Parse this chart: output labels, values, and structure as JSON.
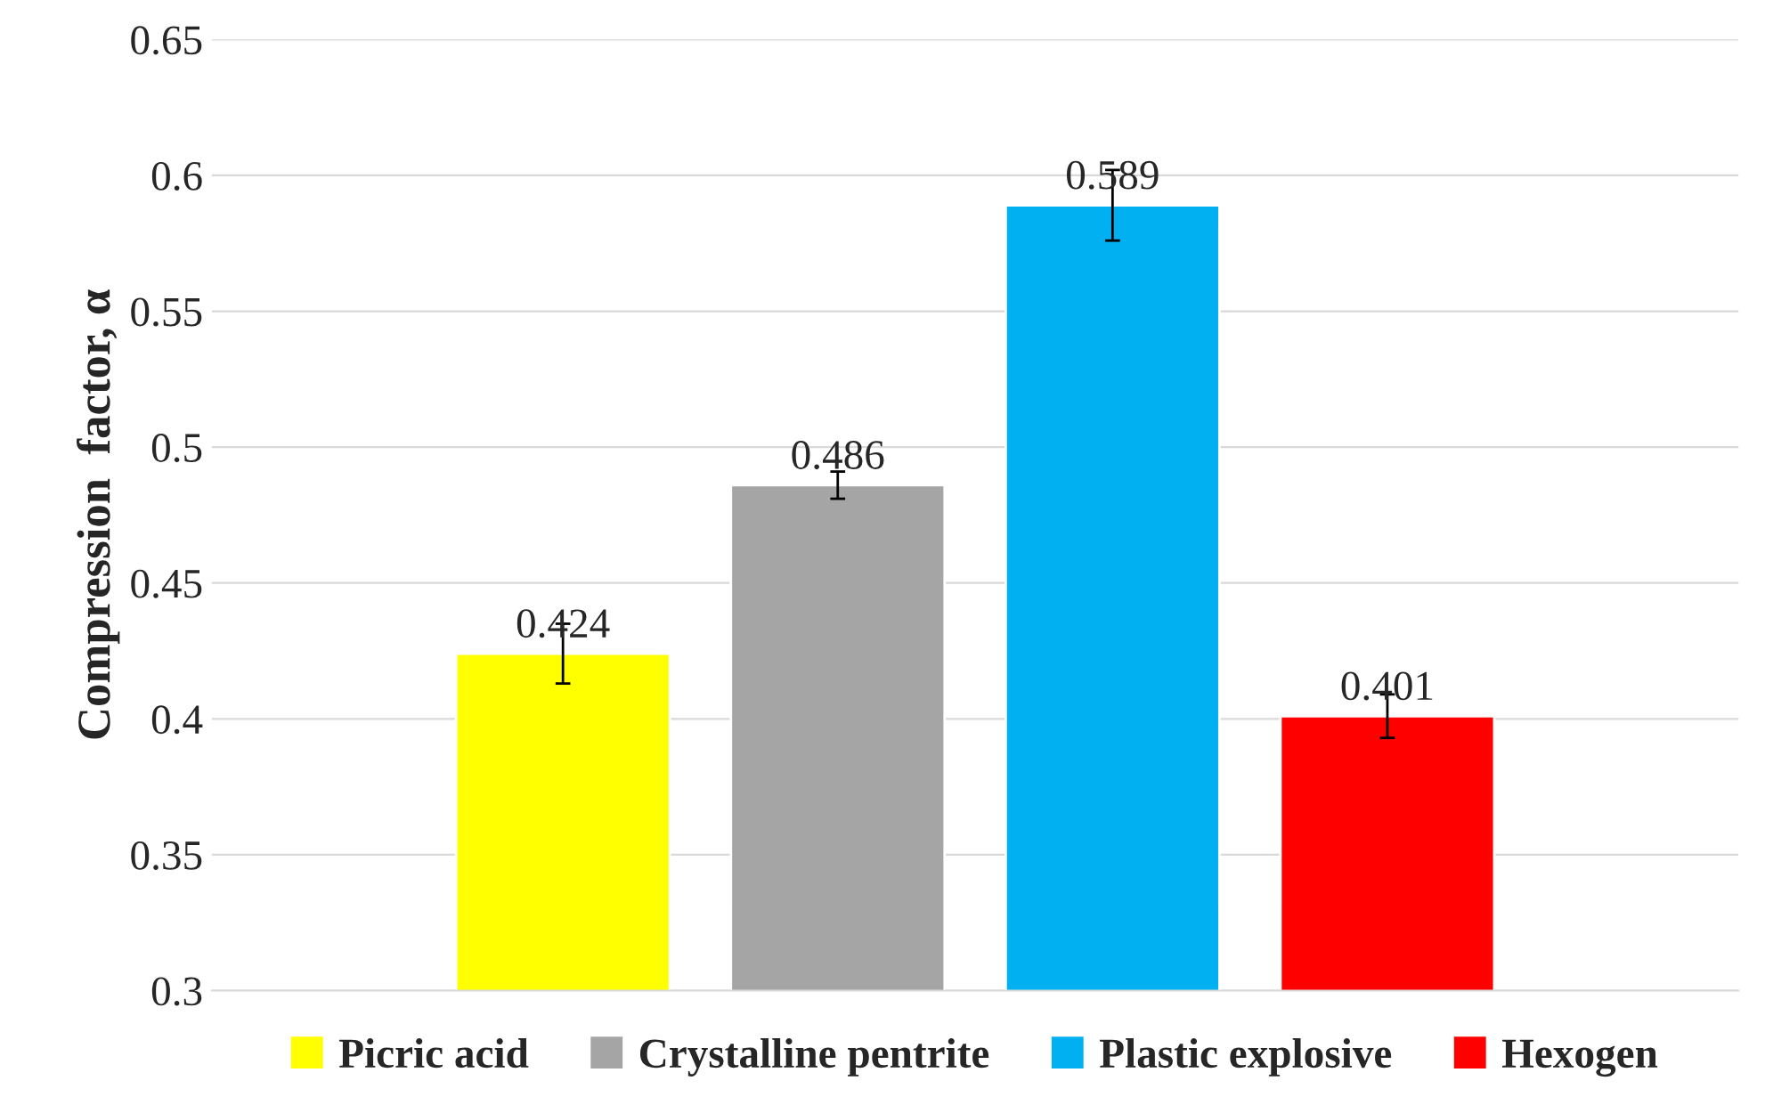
{
  "chart_data": {
    "type": "bar",
    "ylabel": "Compression  factor, α",
    "categories": [
      null
    ],
    "series": [
      {
        "name": "Picric acid",
        "color": "#ffff00",
        "values": [
          0.424
        ],
        "errors": [
          0.011
        ]
      },
      {
        "name": "Crystalline pentrite",
        "color": "#a5a5a5",
        "values": [
          0.486
        ],
        "errors": [
          0.005
        ]
      },
      {
        "name": "Plastic explosive",
        "color": "#00b0f0",
        "values": [
          0.589
        ],
        "errors": [
          0.013
        ]
      },
      {
        "name": "Hexogen",
        "color": "#ff0000",
        "values": [
          0.401
        ],
        "errors": [
          0.008
        ]
      }
    ],
    "ylim": [
      0.3,
      0.65
    ],
    "yticks": [
      0.3,
      0.35,
      0.4,
      0.45,
      0.5,
      0.55,
      0.6,
      0.65
    ],
    "grid": "y",
    "legend": "bottom",
    "data_labels": true
  }
}
